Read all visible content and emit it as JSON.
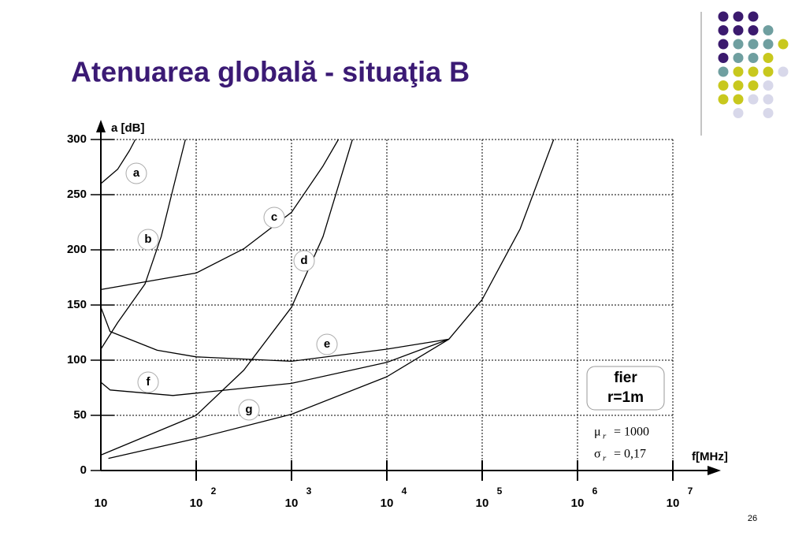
{
  "title": "Atenuarea globală - situaţia B",
  "page_number": "26",
  "chart_data": {
    "type": "line",
    "y_label": "a [dB]",
    "x_label": "f[MHz]",
    "xscale": "log",
    "xlim": [
      10,
      10000000
    ],
    "ylim": [
      0,
      300
    ],
    "xticks": [
      {
        "value": 10,
        "label": "10"
      },
      {
        "value": 100,
        "label": "10",
        "exponent": "2"
      },
      {
        "value": 1000,
        "label": "10",
        "exponent": "3"
      },
      {
        "value": 10000,
        "label": "10",
        "exponent": "4"
      },
      {
        "value": 100000,
        "label": "10",
        "exponent": "5"
      },
      {
        "value": 1000000,
        "label": "10",
        "exponent": "6"
      },
      {
        "value": 10000000,
        "label": "10",
        "exponent": "7"
      }
    ],
    "yticks": [
      0,
      50,
      100,
      150,
      200,
      250,
      300
    ],
    "grid": true,
    "series": [
      {
        "name": "a",
        "color": "#000000",
        "x": [
          10,
          15,
          20,
          23
        ],
        "values": [
          260,
          273,
          290,
          300
        ]
      },
      {
        "name": "b",
        "color": "#000000",
        "x": [
          10,
          15,
          29,
          43,
          57,
          77
        ],
        "values": [
          110,
          134,
          169,
          212,
          255,
          300
        ]
      },
      {
        "name": "c",
        "color": "#000000",
        "x": [
          10,
          100,
          316,
          1000,
          2140,
          3100
        ],
        "values": [
          164,
          179,
          201,
          234,
          276,
          300
        ]
      },
      {
        "name": "d",
        "color": "#000000",
        "x": [
          10,
          100,
          316,
          1000,
          2140,
          4350
        ],
        "values": [
          14,
          50,
          91,
          148,
          212,
          300
        ]
      },
      {
        "name": "e",
        "color": "#000000",
        "x": [
          10,
          12.5,
          39,
          100,
          1000,
          10000,
          44700,
          100000,
          250000,
          562000
        ],
        "values": [
          148,
          126,
          109,
          103,
          99,
          110,
          119,
          155,
          219,
          300
        ]
      },
      {
        "name": "f",
        "color": "#000000",
        "x": [
          10,
          12.5,
          57,
          1000,
          10000,
          44700
        ],
        "values": [
          80,
          73,
          68,
          79,
          98,
          119
        ]
      },
      {
        "name": "g",
        "color": "#000000",
        "x": [
          12,
          100,
          1000,
          10000,
          44700
        ],
        "values": [
          11,
          29,
          51,
          85,
          119
        ]
      }
    ],
    "material": [
      "fier",
      "r=1m"
    ],
    "parameters": [
      {
        "symbol": "μ",
        "subscript": "r",
        "text": "= 1000"
      },
      {
        "symbol": "σ",
        "subscript": "r",
        "text": "= 0,17"
      }
    ]
  }
}
